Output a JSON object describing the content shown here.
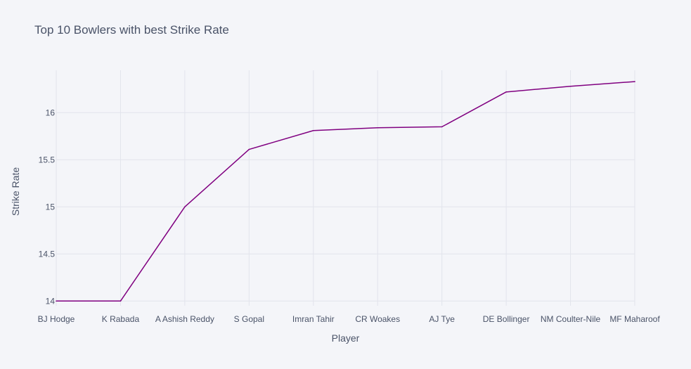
{
  "colors": {
    "background": "#f4f5f9",
    "grid": "#e2e4ec",
    "line": "#800080",
    "text": "#4a5368"
  },
  "chart_data": {
    "type": "line",
    "title": "Top 10 Bowlers with best Strike Rate",
    "xlabel": "Player",
    "ylabel": "Strike Rate",
    "categories": [
      "BJ Hodge",
      "K Rabada",
      "A Ashish Reddy",
      "S Gopal",
      "Imran Tahir",
      "CR Woakes",
      "AJ Tye",
      "DE Bollinger",
      "NM Coulter-Nile",
      "MF Maharoof"
    ],
    "values": [
      14.0,
      14.0,
      15.0,
      15.61,
      15.81,
      15.84,
      15.85,
      16.22,
      16.28,
      16.33
    ],
    "ylim": [
      13.95,
      16.45
    ],
    "yticks": [
      14,
      14.5,
      15,
      15.5,
      16
    ],
    "ytick_labels": [
      "14",
      "14.5",
      "15",
      "15.5",
      "16"
    ],
    "grid": true,
    "legend": "none"
  }
}
